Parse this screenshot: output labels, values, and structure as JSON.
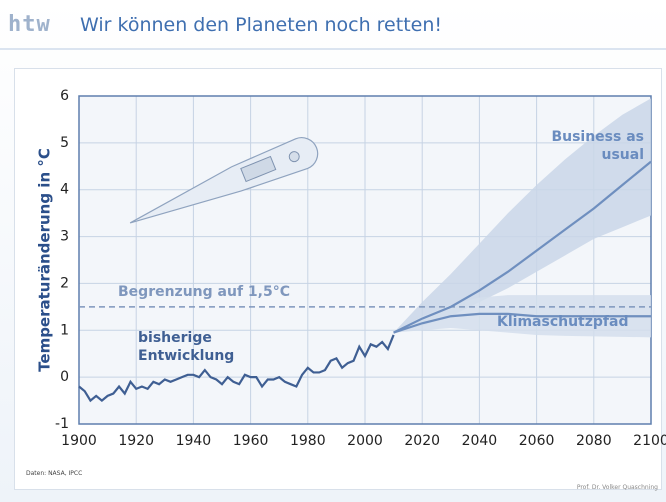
{
  "header": {
    "logo": "htw",
    "title": "Wir können den Planeten noch retten!"
  },
  "footer": {
    "source": "Daten: NASA, IPCC",
    "author": "Prof. Dr. Volker Quaschning"
  },
  "chart_data": {
    "type": "line",
    "ylabel": "Temperaturänderung in °C",
    "xlim": [
      1900,
      2100
    ],
    "xticks": [
      1900,
      1920,
      1940,
      1960,
      1980,
      2000,
      2020,
      2040,
      2060,
      2080,
      2100
    ],
    "ylim": [
      -1,
      6
    ],
    "yticks": [
      -1,
      0,
      1,
      2,
      3,
      4,
      5,
      6
    ],
    "grid": true,
    "threshold": {
      "value": 1.5,
      "label": "Begrenzung auf 1,5°C",
      "color": "#7f97bd"
    },
    "series": [
      {
        "name": "bisherige Entwicklung",
        "color": "#3f5f93",
        "x": [
          1900,
          1902,
          1904,
          1906,
          1908,
          1910,
          1912,
          1914,
          1916,
          1918,
          1920,
          1922,
          1924,
          1926,
          1928,
          1930,
          1932,
          1934,
          1936,
          1938,
          1940,
          1942,
          1944,
          1946,
          1948,
          1950,
          1952,
          1954,
          1956,
          1958,
          1960,
          1962,
          1964,
          1966,
          1968,
          1970,
          1972,
          1974,
          1976,
          1978,
          1980,
          1982,
          1984,
          1986,
          1988,
          1990,
          1992,
          1994,
          1996,
          1998,
          2000,
          2002,
          2004,
          2006,
          2008,
          2010
        ],
        "values": [
          -0.2,
          -0.3,
          -0.5,
          -0.4,
          -0.5,
          -0.4,
          -0.35,
          -0.2,
          -0.35,
          -0.1,
          -0.25,
          -0.2,
          -0.25,
          -0.1,
          -0.15,
          -0.05,
          -0.1,
          -0.05,
          0.0,
          0.05,
          0.05,
          0.0,
          0.15,
          0.0,
          -0.05,
          -0.15,
          0.0,
          -0.1,
          -0.15,
          0.05,
          0.0,
          0.0,
          -0.2,
          -0.05,
          -0.05,
          0.0,
          -0.1,
          -0.15,
          -0.2,
          0.05,
          0.2,
          0.1,
          0.1,
          0.15,
          0.35,
          0.4,
          0.2,
          0.3,
          0.35,
          0.65,
          0.45,
          0.7,
          0.65,
          0.75,
          0.6,
          0.9
        ]
      },
      {
        "name": "Business as usual",
        "color": "#6f8fbf",
        "x": [
          2010,
          2020,
          2030,
          2040,
          2050,
          2060,
          2070,
          2080,
          2090,
          2100
        ],
        "values": [
          0.95,
          1.25,
          1.5,
          1.85,
          2.25,
          2.7,
          3.15,
          3.6,
          4.1,
          4.6
        ],
        "upper": [
          0.95,
          1.6,
          2.2,
          2.85,
          3.5,
          4.1,
          4.65,
          5.15,
          5.6,
          5.95
        ],
        "lower": [
          0.95,
          1.1,
          1.3,
          1.6,
          1.9,
          2.25,
          2.6,
          2.95,
          3.2,
          3.45
        ],
        "band_color": "#c9d6e8"
      },
      {
        "name": "Klimaschutzpfad",
        "color": "#6f8fbf",
        "x": [
          2010,
          2020,
          2030,
          2040,
          2050,
          2060,
          2070,
          2080,
          2090,
          2100
        ],
        "values": [
          0.95,
          1.15,
          1.3,
          1.35,
          1.35,
          1.3,
          1.3,
          1.3,
          1.3,
          1.3
        ],
        "upper": [
          0.95,
          1.3,
          1.55,
          1.7,
          1.75,
          1.75,
          1.75,
          1.75,
          1.75,
          1.75
        ],
        "lower": [
          0.95,
          1.0,
          1.05,
          1.0,
          0.95,
          0.9,
          0.88,
          0.87,
          0.86,
          0.85
        ],
        "band_color": "#d3deec"
      }
    ]
  }
}
